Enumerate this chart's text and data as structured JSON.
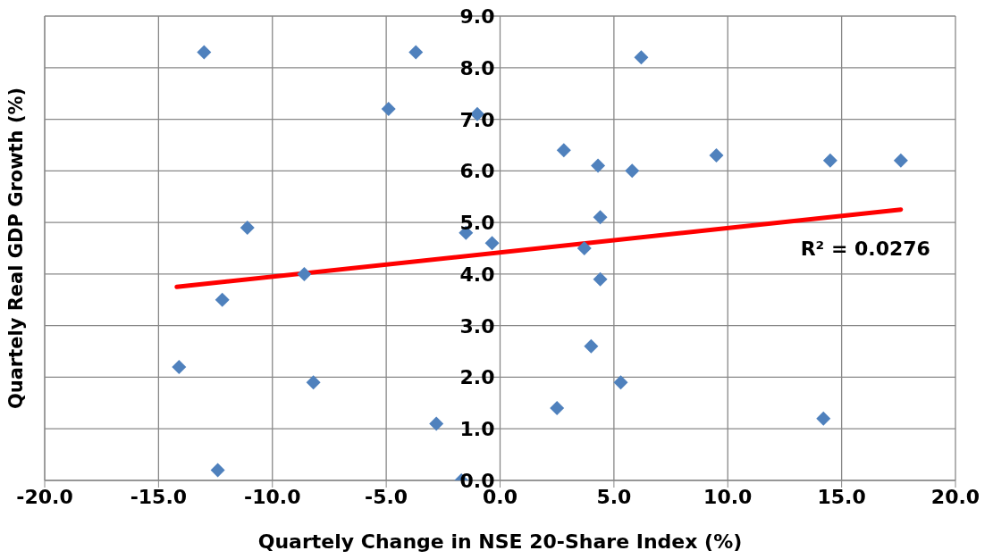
{
  "chart_data": {
    "type": "scatter",
    "xlabel": "Quartely Change in NSE 20-Share Index  (%)",
    "ylabel": "Quartely Real GDP Growth (%)",
    "xlim": [
      -20,
      20
    ],
    "xticks": [
      {
        "value": -20,
        "label": "-20.0"
      },
      {
        "value": -15,
        "label": "-15.0"
      },
      {
        "value": -10,
        "label": "-10.0"
      },
      {
        "value": -5,
        "label": "-5.0"
      },
      {
        "value": 0,
        "label": "0.0"
      },
      {
        "value": 5,
        "label": "5.0"
      },
      {
        "value": 10,
        "label": "10.0"
      },
      {
        "value": 15,
        "label": "15.0"
      },
      {
        "value": 20,
        "label": "20.0"
      }
    ],
    "ylim": [
      0,
      9
    ],
    "yticks": [
      {
        "value": 0,
        "label": "0.0"
      },
      {
        "value": 1,
        "label": "1.0"
      },
      {
        "value": 2,
        "label": "2.0"
      },
      {
        "value": 3,
        "label": "3.0"
      },
      {
        "value": 4,
        "label": "4.0"
      },
      {
        "value": 5,
        "label": "5.0"
      },
      {
        "value": 6,
        "label": "6.0"
      },
      {
        "value": 7,
        "label": "7.0"
      },
      {
        "value": 8,
        "label": "8.0"
      },
      {
        "value": 9,
        "label": "9.0"
      }
    ],
    "grid": true,
    "legend": false,
    "series": [
      {
        "marker": "diamond",
        "color": "#4f81bd",
        "x": [
          -13.0,
          -3.7,
          -4.9,
          -1.0,
          -11.1,
          -1.5,
          -0.35,
          -8.6,
          6.2,
          2.8,
          4.3,
          5.8,
          9.5,
          14.5,
          17.6,
          4.4,
          3.7,
          4.4,
          -12.2,
          -14.1,
          -8.2,
          -2.8,
          -12.4,
          -1.7,
          4.0,
          5.3,
          2.5,
          14.2
        ],
        "values": [
          8.3,
          8.3,
          7.2,
          7.1,
          4.9,
          4.8,
          4.6,
          4.0,
          8.2,
          6.4,
          6.1,
          6.0,
          6.3,
          6.2,
          6.2,
          5.1,
          4.5,
          3.9,
          3.5,
          2.2,
          1.9,
          1.1,
          0.2,
          0.0,
          2.6,
          1.9,
          1.4,
          1.2
        ]
      },
      {
        "type": "line",
        "marker": "none",
        "color": "#ff0000",
        "x": [
          -14.2,
          17.6
        ],
        "values": [
          3.75,
          5.25
        ]
      }
    ],
    "annotations": [
      "R² = 0.0276"
    ]
  }
}
